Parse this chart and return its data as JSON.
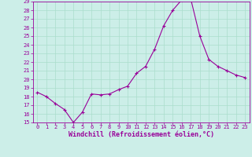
{
  "x": [
    0,
    1,
    2,
    3,
    4,
    5,
    6,
    7,
    8,
    9,
    10,
    11,
    12,
    13,
    14,
    15,
    16,
    17,
    18,
    19,
    20,
    21,
    22,
    23
  ],
  "y": [
    18.5,
    18.0,
    17.2,
    16.5,
    15.0,
    16.2,
    18.3,
    18.2,
    18.3,
    18.8,
    19.2,
    20.7,
    21.5,
    23.5,
    26.2,
    28.0,
    29.2,
    29.3,
    25.0,
    22.3,
    21.5,
    21.0,
    20.5,
    20.2
  ],
  "line_color": "#990099",
  "marker": "+",
  "marker_size": 3,
  "marker_linewidth": 0.8,
  "line_width": 0.8,
  "bg_color": "#cceee8",
  "grid_color": "#aaddcc",
  "xlabel": "Windchill (Refroidissement éolien,°C)",
  "xlabel_color": "#990099",
  "tick_color": "#990099",
  "spine_color": "#990099",
  "ylim": [
    15,
    29
  ],
  "xlim": [
    -0.5,
    23.5
  ],
  "yticks": [
    15,
    16,
    17,
    18,
    19,
    20,
    21,
    22,
    23,
    24,
    25,
    26,
    27,
    28,
    29
  ],
  "xticks": [
    0,
    1,
    2,
    3,
    4,
    5,
    6,
    7,
    8,
    9,
    10,
    11,
    12,
    13,
    14,
    15,
    16,
    17,
    18,
    19,
    20,
    21,
    22,
    23
  ],
  "tick_fontsize": 5.0,
  "xlabel_fontsize": 6.0
}
